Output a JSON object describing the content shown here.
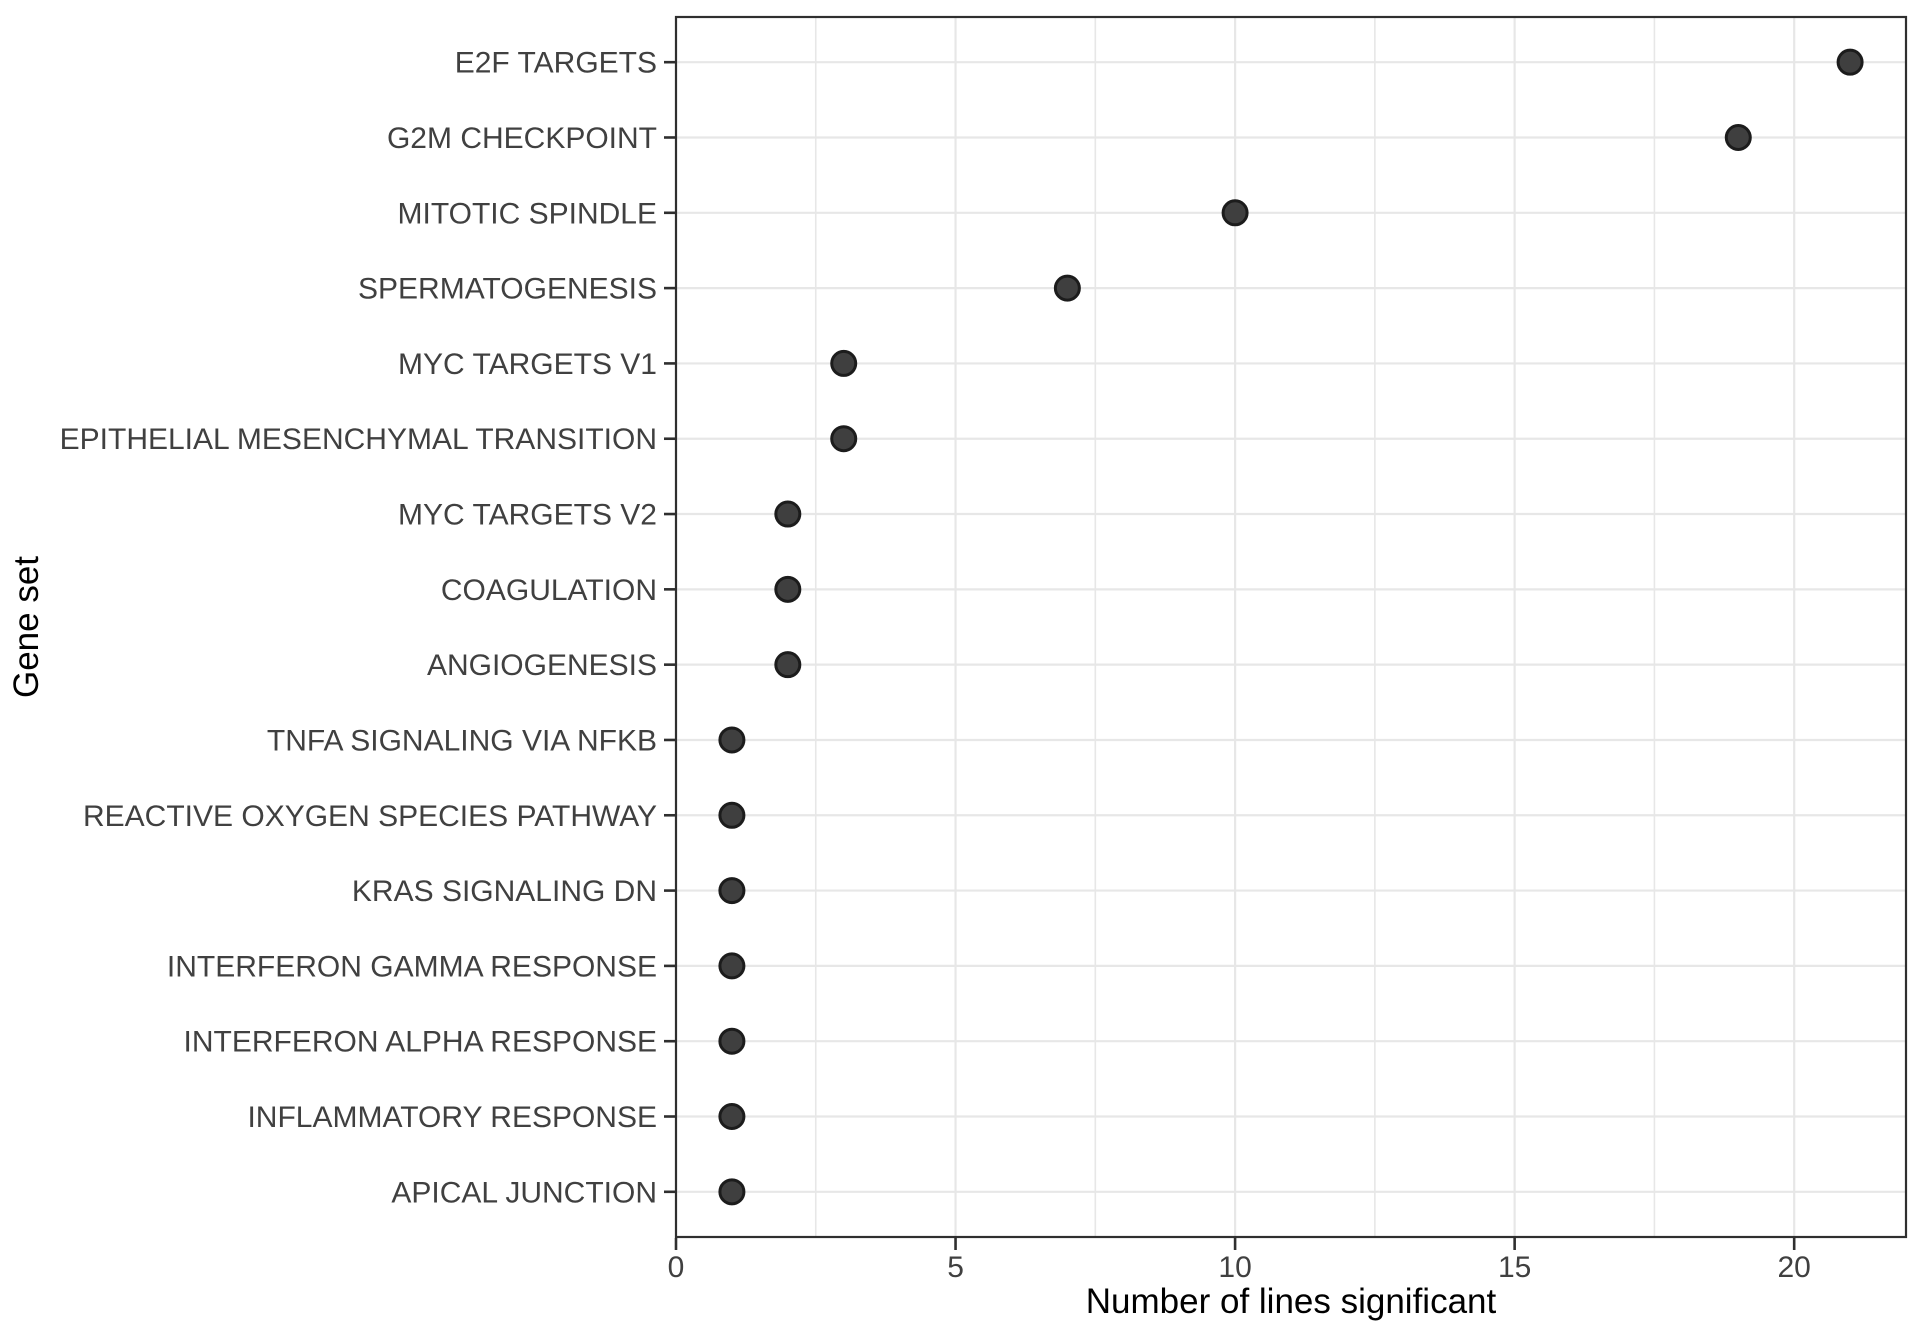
{
  "figure": {
    "background": "#ffffff"
  },
  "chart_data": {
    "type": "scatter",
    "variant": "horizontal-dot-plot",
    "title": "",
    "xlabel": "Number of lines significant",
    "ylabel": "Gene set",
    "categories": [
      "E2F TARGETS",
      "G2M CHECKPOINT",
      "MITOTIC SPINDLE",
      "SPERMATOGENESIS",
      "MYC TARGETS V1",
      "EPITHELIAL MESENCHYMAL TRANSITION",
      "MYC TARGETS V2",
      "COAGULATION",
      "ANGIOGENESIS",
      "TNFA SIGNALING VIA NFKB",
      "REACTIVE OXYGEN SPECIES PATHWAY",
      "KRAS SIGNALING DN",
      "INTERFERON GAMMA RESPONSE",
      "INTERFERON ALPHA RESPONSE",
      "INFLAMMATORY RESPONSE",
      "APICAL JUNCTION"
    ],
    "values": [
      21,
      19,
      10,
      7,
      3,
      3,
      2,
      2,
      2,
      1,
      1,
      1,
      1,
      1,
      1,
      1
    ],
    "x_axis": {
      "tick_labels": [
        "0",
        "5",
        "10",
        "15",
        "20"
      ],
      "ticks": [
        0,
        5,
        10,
        15,
        20
      ],
      "minor_ticks": [
        2.5,
        7.5,
        12.5,
        17.5
      ],
      "lim": [
        0,
        22
      ]
    },
    "grid": true,
    "legend": "none",
    "colors": {
      "point_fill": "#3f3f3f",
      "point_stroke": "#1c1c1c",
      "grid": "#e7e7e7",
      "panel_border": "#2f2f2f",
      "tick_mark": "#2f2f2f",
      "tick_label": "#404040",
      "axis_title": "#000000",
      "panel_background": "#ffffff"
    }
  }
}
